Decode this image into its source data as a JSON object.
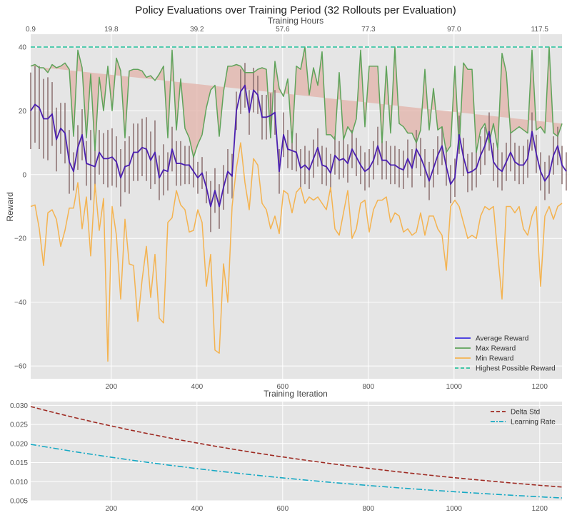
{
  "chart_data": [
    {
      "type": "line",
      "title": "Policy Evaluations over Training Period (32 Rollouts per Evaluation)",
      "xlabel": "Training Iteration",
      "ylabel": "Reward",
      "top_xlabel": "Training Hours",
      "top_xticks": [
        "0.9",
        "19.8",
        "39.2",
        "57.6",
        "77.3",
        "97.0",
        "117.5"
      ],
      "top_xtick_iters": [
        12,
        200,
        400,
        600,
        800,
        1000,
        1200
      ],
      "xticks": [
        200,
        400,
        600,
        800,
        1000,
        1200
      ],
      "yticks": [
        -60,
        -40,
        -20,
        0,
        20,
        40
      ],
      "xlim": [
        12,
        1252
      ],
      "ylim": [
        -64,
        44
      ],
      "grid": true,
      "legend_position": "lower-right",
      "x_start": 12,
      "x_step": 10,
      "highest_possible_reward": 40,
      "series": [
        {
          "name": "Average Reward",
          "color": "#4b1fb0",
          "values": [
            20,
            22,
            21,
            17.5,
            17.5,
            19,
            11,
            14.5,
            13,
            4,
            1,
            8.5,
            12.5,
            3.5,
            3,
            2.5,
            7,
            5,
            5,
            5.5,
            4,
            -1,
            2.5,
            3,
            7,
            7,
            8.5,
            8,
            4.5,
            7,
            -1,
            1.5,
            1,
            8,
            3.5,
            3.5,
            3,
            3,
            1,
            -1,
            0.5,
            -4,
            -10,
            -5,
            -10,
            -4,
            1,
            -0.5,
            20,
            26,
            28,
            19.5,
            26.5,
            25,
            18,
            18,
            18.5,
            19.5,
            1,
            12.5,
            8,
            7.5,
            7,
            2,
            3,
            1.5,
            5,
            8.5,
            3,
            2.5,
            0.5,
            6,
            4.5,
            5,
            3.5,
            8,
            5.5,
            3,
            1,
            2,
            4.5,
            9,
            4.5,
            4.5,
            3,
            3,
            2,
            1.5,
            5,
            2,
            8,
            5.5,
            2,
            -2,
            2,
            6,
            9,
            2.5,
            -3,
            -1,
            12.5,
            5.5,
            0.5,
            1,
            2,
            6,
            9,
            13.5,
            4,
            2,
            1,
            4,
            7,
            4,
            3,
            3,
            5,
            13.5,
            6.5,
            1,
            -2,
            0,
            6,
            9,
            3,
            1
          ]
        },
        {
          "name": "Max Reward",
          "color": "#5fa35a",
          "values": [
            34,
            34.5,
            33.5,
            33.5,
            32,
            34.5,
            33.5,
            34,
            35,
            33,
            12,
            39,
            33.5,
            11.5,
            31.5,
            7.5,
            30.5,
            20,
            34,
            20,
            36.5,
            32.5,
            11.5,
            32.5,
            33,
            33,
            32.5,
            30.5,
            31,
            29.5,
            31.5,
            34,
            11.5,
            39,
            14,
            30,
            14.5,
            11.5,
            5.5,
            9.5,
            12.5,
            21,
            26.5,
            28,
            12,
            26,
            34,
            34,
            34.5,
            34,
            32,
            32,
            32,
            33,
            33.5,
            33,
            11.5,
            35.5,
            27,
            24.5,
            30,
            10,
            34,
            33,
            40,
            25,
            33.5,
            28,
            38.5,
            12.5,
            12.5,
            11,
            32,
            11,
            15,
            13,
            17.5,
            39,
            15,
            34,
            34,
            34,
            10,
            34,
            13,
            40,
            16,
            15,
            13,
            13,
            10,
            14,
            33,
            14,
            27,
            14,
            15,
            7,
            9,
            34,
            8,
            35,
            33,
            33,
            7,
            14,
            16,
            10,
            16,
            8,
            38,
            32,
            13,
            14,
            15,
            14,
            13,
            39,
            14,
            15,
            13,
            40,
            13,
            12,
            16
          ]
        },
        {
          "name": "Min Reward",
          "color": "#f4b350",
          "values": [
            -10,
            -9.5,
            -17,
            -28.5,
            -12,
            -11,
            -14,
            -22.5,
            -17.5,
            -10.5,
            -10.5,
            -2.5,
            -17,
            -7,
            -25.5,
            -3,
            -17.5,
            -7.5,
            -58.5,
            -10,
            -19,
            -39,
            -14,
            -28,
            -28.5,
            -46,
            -33,
            -22.5,
            -38.5,
            -25,
            -45,
            -46.5,
            -15,
            -13.5,
            -5,
            -9.5,
            -11,
            -18,
            -17.5,
            -11,
            -15,
            -35,
            -25,
            -55,
            -56,
            -28,
            -40,
            -10,
            2,
            10,
            -2.5,
            -11,
            5,
            3,
            -9,
            -11,
            -17,
            -13,
            -18.5,
            -5,
            -6,
            -12,
            -5.5,
            -4,
            -9,
            -7,
            -8,
            -7,
            -9,
            -11,
            -4,
            -17,
            -19,
            -12,
            -5,
            -20,
            -17,
            -9,
            -8,
            -18,
            -11,
            -8,
            -8,
            -7,
            -15,
            -12,
            -13,
            -18,
            -17,
            -19,
            -18,
            -12,
            -19,
            -13,
            -13,
            -17,
            -19,
            -30,
            -10,
            -8,
            -10,
            -15,
            -20,
            -19,
            -20,
            -13,
            -10,
            -11,
            -10,
            -25,
            -39,
            -10,
            -10,
            -12,
            -10,
            -17,
            -19,
            -13,
            -10,
            -35,
            -13,
            -10,
            -14,
            -10,
            -9
          ]
        },
        {
          "name": "Highest Possible Reward",
          "color": "#2ec4a0",
          "constant": 40
        }
      ],
      "std_values": [
        12,
        12,
        13,
        12.5,
        13,
        10,
        10,
        8,
        9.5,
        10,
        6,
        7,
        8,
        7,
        11,
        8,
        7,
        8,
        9,
        9,
        8,
        9,
        8,
        9,
        9,
        9,
        9,
        10,
        9,
        10,
        7,
        8,
        6,
        7,
        7,
        7,
        6,
        6,
        5,
        5,
        5,
        5,
        8,
        7,
        7,
        7,
        7,
        7,
        6,
        7,
        7,
        7,
        7,
        6,
        7,
        7,
        7,
        7,
        7,
        7,
        6,
        6,
        6,
        6,
        6,
        6,
        6,
        6,
        6,
        6,
        6,
        6,
        6,
        6,
        6,
        6,
        6,
        6,
        6,
        6,
        6,
        6,
        6,
        6,
        6,
        6,
        6,
        6,
        6,
        6,
        6,
        6,
        6,
        6,
        6,
        6,
        6,
        6,
        6,
        6,
        6,
        6,
        6,
        6,
        6,
        6,
        6,
        6,
        6,
        6,
        6,
        6,
        6,
        6,
        6,
        6,
        6,
        6,
        6,
        6,
        6,
        6,
        6,
        6,
        6
      ]
    },
    {
      "type": "line",
      "xticks": [
        200,
        400,
        600,
        800,
        1000,
        1200
      ],
      "yticks": [
        "0.005",
        "0.010",
        "0.015",
        "0.020",
        "0.025",
        "0.030"
      ],
      "ylim": [
        0.005,
        0.031
      ],
      "xlim": [
        12,
        1252
      ],
      "grid": true,
      "legend_position": "top-right",
      "series": [
        {
          "name": "Delta Std",
          "color": "#9e2a22",
          "style": "dashed",
          "start": 0.0297,
          "decay": 0.999
        },
        {
          "name": "Learning Rate",
          "color": "#17a9c4",
          "style": "dashdot",
          "start": 0.0198,
          "decay": 0.999
        }
      ]
    }
  ],
  "legend_main": [
    "Average Reward",
    "Max Reward",
    "Min Reward",
    "Highest Possible Reward"
  ],
  "legend_sub": [
    "Delta Std",
    "Learning Rate"
  ],
  "colors": {
    "fill": "#e2b2a8",
    "errorbar": "#8a6d6d",
    "background": "#e5e5e5",
    "grid": "#ffffff"
  }
}
